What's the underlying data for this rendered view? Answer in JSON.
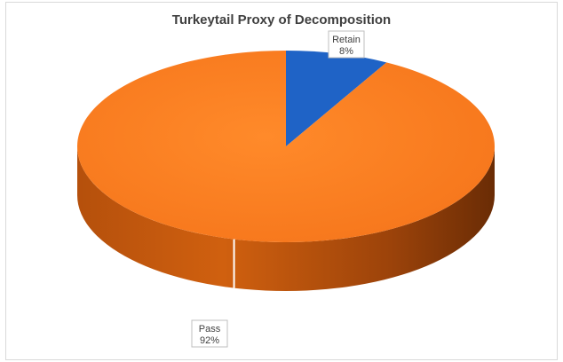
{
  "chart_data": {
    "type": "pie",
    "title": "Turkeytail Proxy of Decomposition",
    "categories": [
      "Retain",
      "Pass"
    ],
    "values": [
      8,
      92
    ],
    "data_labels": [
      {
        "name": "Retain",
        "value": "8%"
      },
      {
        "name": "Pass",
        "value": "92%"
      }
    ],
    "colors": {
      "Retain": "#1f63c6",
      "Pass": "#ff7f1f"
    },
    "style": "3d-pie",
    "legend": "none"
  }
}
